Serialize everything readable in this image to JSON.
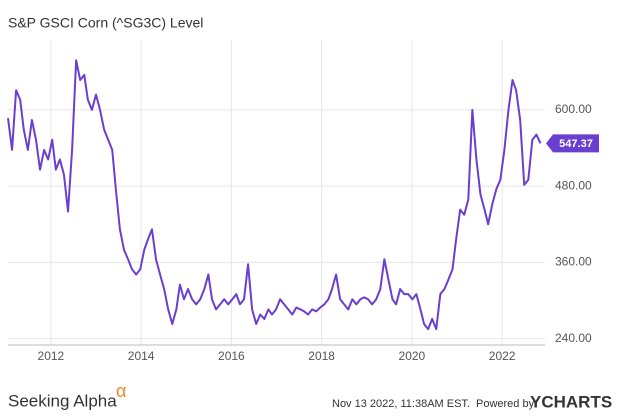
{
  "chart_data": {
    "type": "line",
    "title": "S&P GSCI Corn (^SG3C) Level",
    "color": "#6a3fcf",
    "grid": true,
    "x": [
      2011.05,
      2011.14,
      2011.23,
      2011.32,
      2011.4,
      2011.49,
      2011.58,
      2011.67,
      2011.76,
      2011.85,
      2011.94,
      2012.03,
      2012.11,
      2012.2,
      2012.29,
      2012.38,
      2012.47,
      2012.56,
      2012.65,
      2012.74,
      2012.82,
      2012.91,
      2013.0,
      2013.09,
      2013.18,
      2013.27,
      2013.36,
      2013.44,
      2013.53,
      2013.62,
      2013.71,
      2013.8,
      2013.89,
      2013.98,
      2014.07,
      2014.15,
      2014.24,
      2014.33,
      2014.42,
      2014.51,
      2014.6,
      2014.69,
      2014.78,
      2014.86,
      2014.95,
      2015.04,
      2015.13,
      2015.22,
      2015.31,
      2015.4,
      2015.49,
      2015.57,
      2015.66,
      2015.75,
      2015.84,
      2015.93,
      2016.02,
      2016.11,
      2016.19,
      2016.28,
      2016.37,
      2016.46,
      2016.55,
      2016.64,
      2016.73,
      2016.82,
      2016.9,
      2016.99,
      2017.08,
      2017.17,
      2017.26,
      2017.35,
      2017.44,
      2017.53,
      2017.61,
      2017.7,
      2017.79,
      2017.88,
      2017.97,
      2018.06,
      2018.15,
      2018.23,
      2018.32,
      2018.41,
      2018.5,
      2018.59,
      2018.68,
      2018.77,
      2018.86,
      2018.94,
      2019.03,
      2019.12,
      2019.21,
      2019.3,
      2019.39,
      2019.48,
      2019.57,
      2019.65,
      2019.74,
      2019.83,
      2019.92,
      2020.01,
      2020.1,
      2020.19,
      2020.27,
      2020.36,
      2020.45,
      2020.54,
      2020.63,
      2020.72,
      2020.81,
      2020.9,
      2020.98,
      2021.07,
      2021.16,
      2021.25,
      2021.34,
      2021.43,
      2021.52,
      2021.61,
      2021.69,
      2021.78,
      2021.87,
      2021.96,
      2022.05,
      2022.14,
      2022.23,
      2022.31,
      2022.4,
      2022.49,
      2022.58,
      2022.67,
      2022.76,
      2022.85
    ],
    "values": [
      587,
      537,
      631,
      616,
      569,
      537,
      584,
      553,
      506,
      537,
      522,
      553,
      506,
      522,
      498,
      440,
      537,
      678,
      647,
      655,
      616,
      600,
      624,
      600,
      569,
      553,
      537,
      475,
      412,
      380,
      365,
      349,
      341,
      349,
      380,
      396,
      412,
      365,
      341,
      318,
      286,
      263,
      286,
      325,
      302,
      318,
      302,
      294,
      302,
      318,
      341,
      302,
      286,
      294,
      302,
      294,
      302,
      310,
      294,
      302,
      357,
      286,
      263,
      278,
      271,
      286,
      278,
      286,
      302,
      294,
      286,
      278,
      289,
      286,
      283,
      278,
      286,
      283,
      289,
      294,
      302,
      318,
      341,
      302,
      294,
      286,
      302,
      294,
      302,
      305,
      302,
      294,
      302,
      318,
      365,
      333,
      302,
      294,
      318,
      310,
      310,
      302,
      310,
      286,
      263,
      255,
      271,
      255,
      310,
      318,
      333,
      349,
      396,
      443,
      435,
      459,
      600,
      522,
      467,
      443,
      420,
      451,
      475,
      490,
      537,
      600,
      647,
      631,
      584,
      482,
      490,
      553,
      561,
      547.37
    ],
    "xlim": [
      2011.05,
      2022.95
    ],
    "xticks": [
      2012,
      2014,
      2016,
      2018,
      2020,
      2022
    ],
    "ylim": [
      230,
      710
    ],
    "yticks": [
      {
        "value": 240,
        "label": "240.00"
      },
      {
        "value": 360,
        "label": "360.00"
      },
      {
        "value": 480,
        "label": "480.00"
      },
      {
        "value": 600,
        "label": "600.00"
      }
    ]
  },
  "footer": {
    "brand": "Seeking Alpha",
    "brand_mark": "α",
    "timestamp": "Nov 13 2022, 11:38AM EST.",
    "powered_by": "Powered by",
    "provider": "YCHARTS"
  }
}
